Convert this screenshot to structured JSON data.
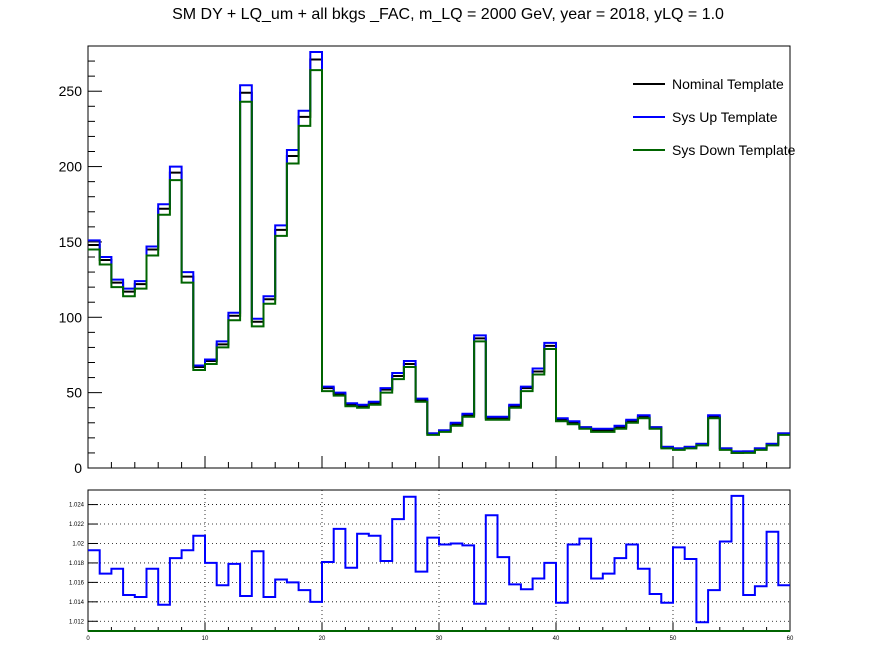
{
  "chart_data": [
    {
      "type": "line",
      "title": "SM DY + LQ_um + all bkgs  _FAC, m_LQ = 2000 GeV, year = 2018, yLQ = 1.0",
      "xlabel": "",
      "ylabel": "",
      "xlim": [
        0,
        60
      ],
      "ylim": [
        0,
        280
      ],
      "grid": false,
      "legend_position": "top-right",
      "y_ticks": [
        "0",
        "50",
        "100",
        "150",
        "200",
        "250"
      ],
      "bin_edges_from": 0,
      "bin_width": 1,
      "series": [
        {
          "name": "Nominal Template",
          "color": "#000000",
          "values": [
            148,
            138,
            123,
            117,
            122,
            145,
            172,
            196,
            127,
            67,
            71,
            82,
            101,
            249,
            97,
            112,
            158,
            207,
            233,
            271,
            53,
            49,
            42,
            41,
            43,
            52,
            61,
            69,
            45,
            23,
            25,
            29,
            35,
            86,
            33,
            33,
            41,
            53,
            64,
            81,
            32,
            30,
            27,
            25,
            25,
            27,
            31,
            34,
            27,
            14,
            13,
            14,
            16,
            34,
            13,
            10,
            11,
            13,
            16,
            23
          ]
        },
        {
          "name": "Sys Up Template",
          "color": "#0000ff",
          "values": [
            151,
            140,
            125,
            119,
            124,
            147,
            175,
            200,
            130,
            68,
            72,
            84,
            103,
            254,
            99,
            114,
            161,
            211,
            237,
            276,
            54,
            50,
            43,
            42,
            44,
            53,
            63,
            71,
            46,
            23,
            25,
            30,
            36,
            88,
            34,
            34,
            42,
            54,
            66,
            83,
            33,
            31,
            27,
            26,
            26,
            28,
            32,
            35,
            27,
            14,
            13,
            14,
            16,
            35,
            13,
            11,
            11,
            13,
            16,
            23
          ]
        },
        {
          "name": "Sys Down Template",
          "color": "#006400",
          "values": [
            145,
            135,
            120,
            114,
            119,
            141,
            168,
            191,
            123,
            65,
            69,
            80,
            98,
            243,
            94,
            109,
            154,
            202,
            227,
            264,
            51,
            48,
            41,
            40,
            42,
            50,
            59,
            67,
            44,
            22,
            24,
            28,
            34,
            84,
            32,
            32,
            40,
            51,
            62,
            79,
            31,
            29,
            26,
            24,
            24,
            26,
            30,
            33,
            26,
            13,
            12,
            13,
            15,
            33,
            12,
            10,
            10,
            12,
            15,
            22
          ]
        }
      ]
    },
    {
      "type": "line",
      "title": "",
      "xlabel": "",
      "ylabel": "",
      "xlim": [
        0,
        60
      ],
      "ylim": [
        1.011,
        1.0255
      ],
      "grid": true,
      "x_ticks": [
        "0",
        "10",
        "20",
        "30",
        "40",
        "50",
        "60"
      ],
      "y_ticks": [
        "1.012",
        "1.014",
        "1.016",
        "1.018",
        "1.02",
        "1.022",
        "1.024"
      ],
      "series": [
        {
          "name": "",
          "color": "#0000ff",
          "values": [
            1.0193,
            1.0169,
            1.0174,
            1.0147,
            1.0145,
            1.0174,
            1.0137,
            1.0185,
            1.0193,
            1.0208,
            1.018,
            1.0157,
            1.0179,
            1.0146,
            1.0192,
            1.0145,
            1.0163,
            1.016,
            1.0152,
            1.014,
            1.0181,
            1.0215,
            1.0175,
            1.021,
            1.0208,
            1.0182,
            1.0225,
            1.0248,
            1.0171,
            1.0206,
            1.0199,
            1.02,
            1.0198,
            1.0138,
            1.0229,
            1.0186,
            1.0158,
            1.0153,
            1.0164,
            1.018,
            1.0139,
            1.0199,
            1.0205,
            1.0164,
            1.0169,
            1.0185,
            1.0199,
            1.0174,
            1.0148,
            1.0139,
            1.0196,
            1.0184,
            1.0119,
            1.0152,
            1.0202,
            1.0249,
            1.0147,
            1.0156,
            1.0212,
            1.0157
          ]
        },
        {
          "name": "",
          "color": "#006400",
          "values": [
            1.011,
            1.011,
            1.011,
            1.011,
            1.011,
            1.011,
            1.011,
            1.011,
            1.011,
            1.011,
            1.011,
            1.011,
            1.011,
            1.011,
            1.011,
            1.011,
            1.011,
            1.011,
            1.011,
            1.011,
            1.011,
            1.011,
            1.011,
            1.011,
            1.011,
            1.011,
            1.011,
            1.011,
            1.011,
            1.011,
            1.011,
            1.011,
            1.011,
            1.011,
            1.011,
            1.011,
            1.011,
            1.011,
            1.011,
            1.011,
            1.011,
            1.011,
            1.011,
            1.011,
            1.011,
            1.011,
            1.011,
            1.011,
            1.011,
            1.011,
            1.011,
            1.011,
            1.011,
            1.011,
            1.011,
            1.011,
            1.011,
            1.011,
            1.011,
            1.011
          ]
        }
      ]
    }
  ]
}
